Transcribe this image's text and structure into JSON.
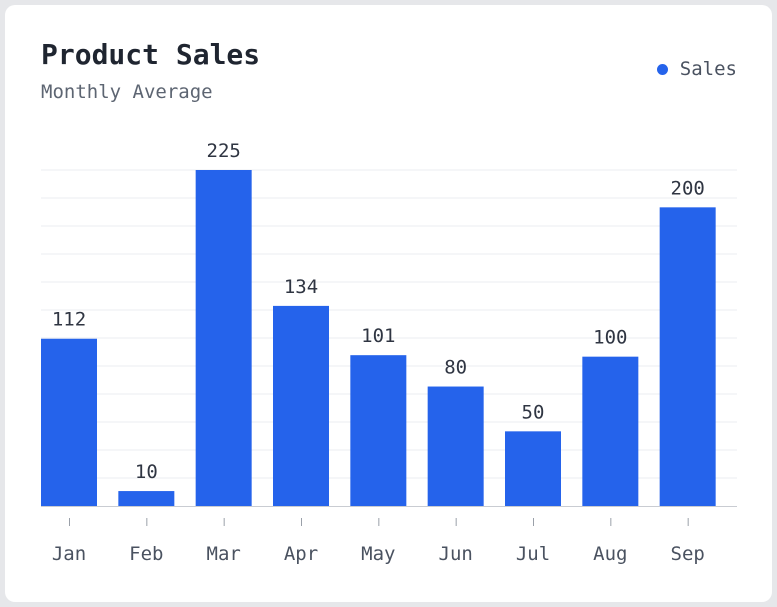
{
  "card": {
    "title": "Product Sales",
    "subtitle": "Monthly Average"
  },
  "legend": {
    "items": [
      {
        "label": "Sales",
        "color": "#2563eb"
      }
    ]
  },
  "chart_data": {
    "type": "bar",
    "title": "Product Sales",
    "subtitle": "Monthly Average",
    "categories": [
      "Jan",
      "Feb",
      "Mar",
      "Apr",
      "May",
      "Jun",
      "Jul",
      "Aug",
      "Sep"
    ],
    "series": [
      {
        "name": "Sales",
        "color": "#2563eb",
        "values": [
          112,
          10,
          225,
          134,
          101,
          80,
          50,
          100,
          200
        ]
      }
    ],
    "xlabel": "",
    "ylabel": "",
    "ylim": [
      0,
      225
    ],
    "grid": true,
    "legend_position": "top-right",
    "data_labels": true
  }
}
